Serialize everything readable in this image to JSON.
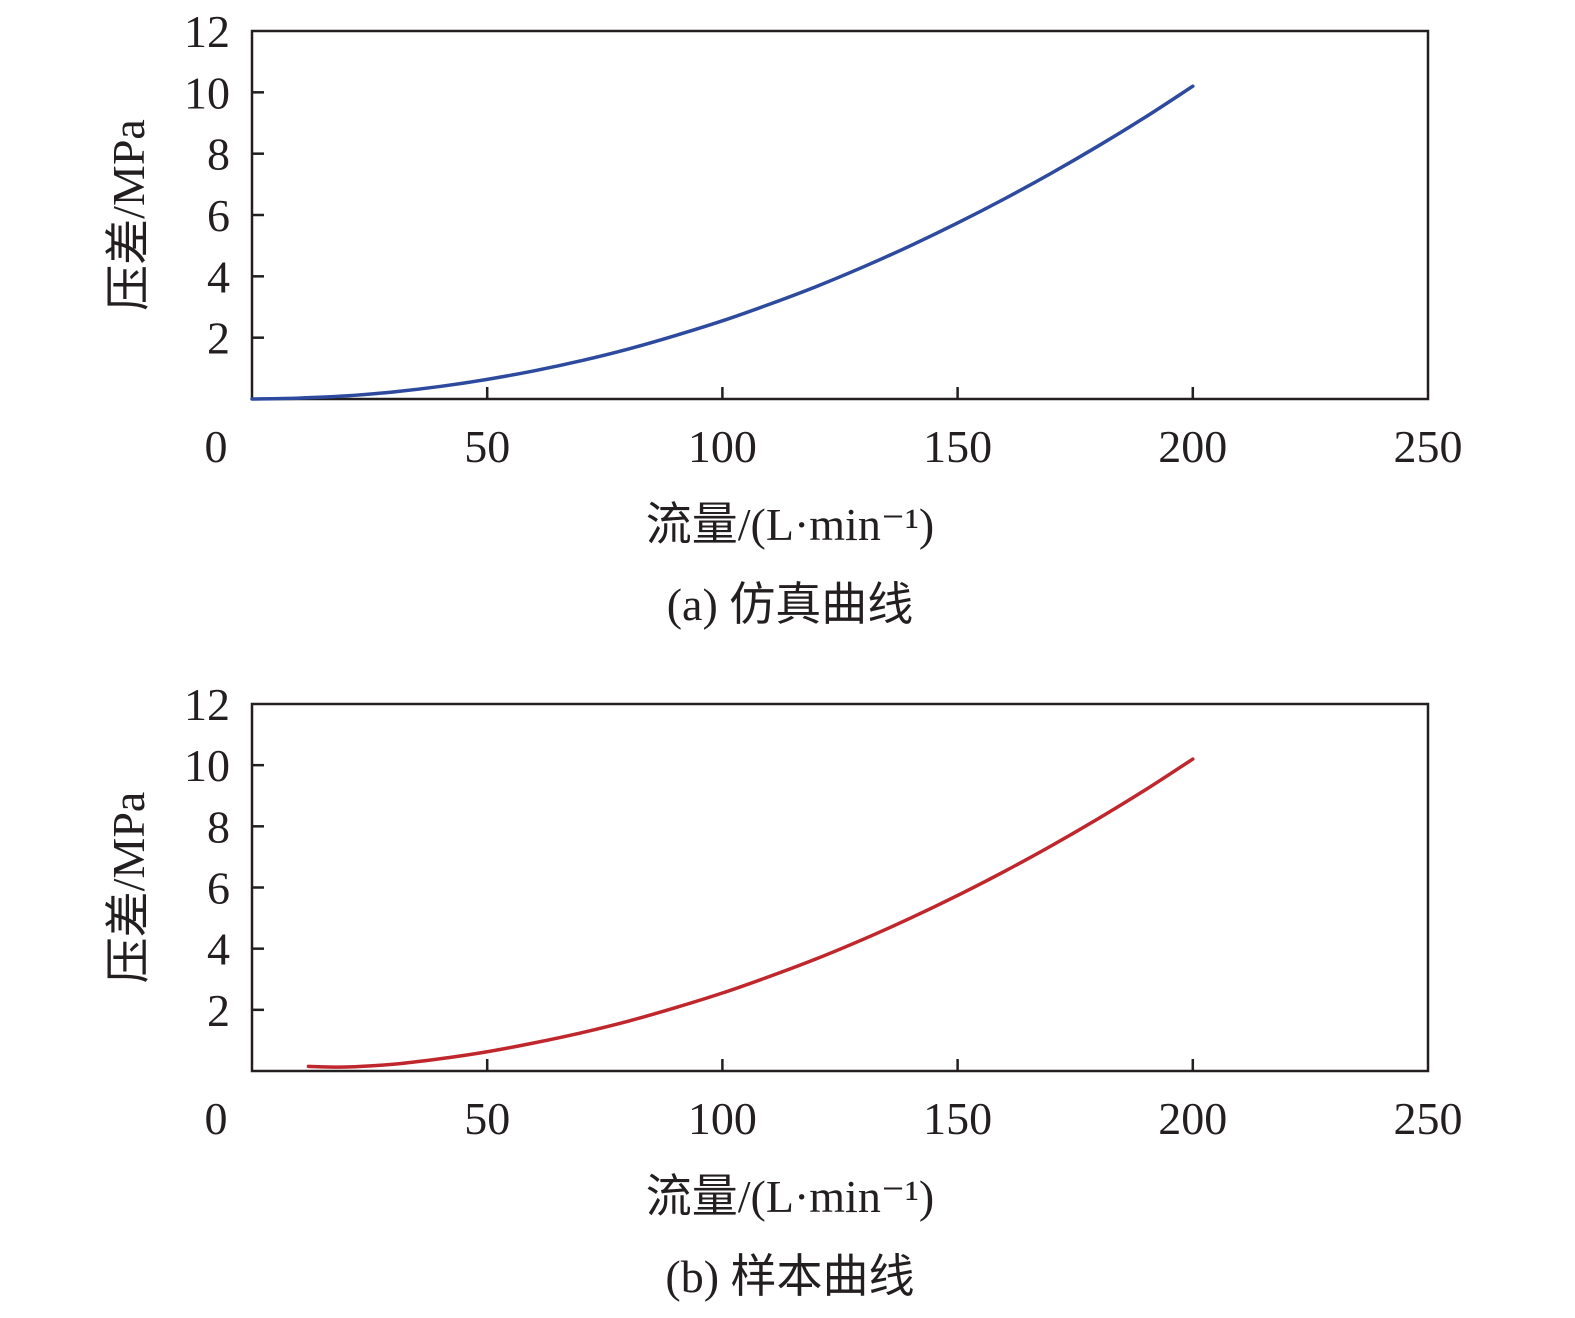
{
  "chart_data": [
    {
      "type": "line",
      "caption": "(a) 仿真曲线",
      "xlabel": "流量/(L·min⁻¹)",
      "ylabel": "压差/MPa",
      "xlim": [
        0,
        250
      ],
      "ylim": [
        0,
        12
      ],
      "xticks": [
        "0",
        "50",
        "100",
        "150",
        "200",
        "250"
      ],
      "yticks": [
        "2",
        "4",
        "6",
        "8",
        "10",
        "12"
      ],
      "grid": false,
      "series": [
        {
          "color": "#2e4a9e",
          "x": [
            0,
            10,
            20,
            30,
            40,
            50,
            60,
            70,
            80,
            90,
            100,
            110,
            120,
            130,
            140,
            150,
            160,
            170,
            180,
            190,
            200
          ],
          "y": [
            0.0,
            0.03,
            0.1,
            0.23,
            0.41,
            0.64,
            0.92,
            1.25,
            1.63,
            2.07,
            2.55,
            3.09,
            3.67,
            4.31,
            5.0,
            5.74,
            6.53,
            7.37,
            8.26,
            9.2,
            10.2
          ]
        }
      ]
    },
    {
      "type": "line",
      "caption": "(b) 样本曲线",
      "xlabel": "流量/(L·min⁻¹)",
      "ylabel": "压差/MPa",
      "xlim": [
        0,
        250
      ],
      "ylim": [
        0,
        12
      ],
      "xticks": [
        "0",
        "50",
        "100",
        "150",
        "200",
        "250"
      ],
      "yticks": [
        "2",
        "4",
        "6",
        "8",
        "10",
        "12"
      ],
      "grid": false,
      "series": [
        {
          "color": "#c0272d",
          "x": [
            12,
            20,
            30,
            40,
            50,
            60,
            70,
            80,
            90,
            100,
            110,
            120,
            130,
            140,
            150,
            160,
            170,
            180,
            190,
            200
          ],
          "y": [
            0.15,
            0.13,
            0.22,
            0.4,
            0.63,
            0.92,
            1.25,
            1.63,
            2.07,
            2.55,
            3.09,
            3.67,
            4.31,
            5.0,
            5.74,
            6.53,
            7.37,
            8.26,
            9.2,
            10.2
          ]
        }
      ]
    }
  ]
}
